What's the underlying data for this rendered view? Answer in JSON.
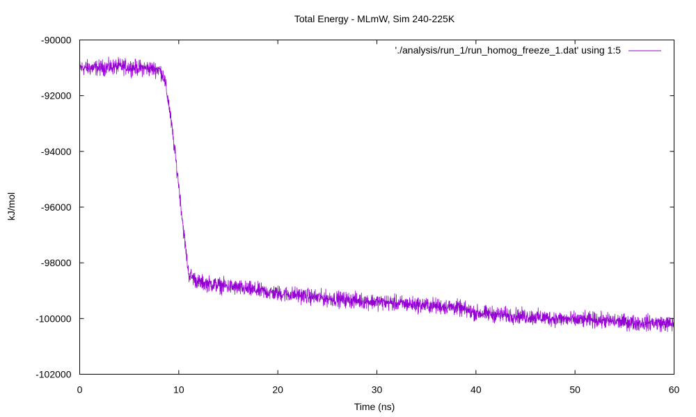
{
  "chart_data": {
    "type": "line",
    "title": "Total Energy - MLmW, Sim 240-225K",
    "xlabel": "Time (ns)",
    "ylabel": "kJ/mol",
    "xlim": [
      0,
      60
    ],
    "ylim": [
      -102000,
      -90000
    ],
    "xticks": [
      "0",
      "10",
      "20",
      "30",
      "40",
      "50",
      "60"
    ],
    "yticks": [
      "-90000",
      "-92000",
      "-94000",
      "-96000",
      "-98000",
      "-100000",
      "-102000"
    ],
    "grid": false,
    "legend_position": "top-right",
    "series": [
      {
        "name": "'./analysis/run_1/run_homog_freeze_1.dat' using 1:5",
        "color": "#9400d3",
        "x": [
          0,
          2,
          4,
          6,
          8,
          8.5,
          9,
          9.5,
          10,
          10.5,
          11,
          12,
          14,
          16,
          18,
          20,
          22,
          24,
          26,
          28,
          30,
          32,
          34,
          36,
          38,
          40,
          42,
          44,
          46,
          48,
          50,
          52,
          54,
          56,
          58,
          60
        ],
        "y": [
          -91000,
          -91000,
          -90950,
          -91000,
          -91050,
          -91300,
          -92300,
          -93700,
          -95200,
          -96900,
          -98400,
          -98700,
          -98800,
          -98900,
          -99000,
          -99100,
          -99150,
          -99250,
          -99300,
          -99350,
          -99400,
          -99450,
          -99500,
          -99550,
          -99600,
          -99800,
          -99850,
          -99900,
          -99950,
          -100000,
          -100050,
          -100050,
          -100100,
          -100150,
          -100150,
          -100200
        ],
        "noise_amplitude": 280
      }
    ]
  }
}
